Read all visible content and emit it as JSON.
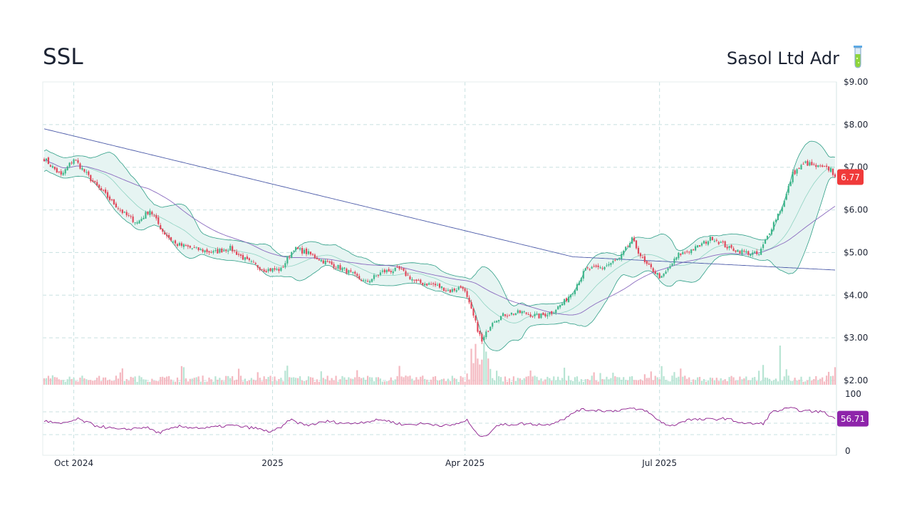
{
  "header": {
    "ticker": "SSL",
    "company": "Sasol Ltd Adr"
  },
  "icons": {
    "company_icon": "test-tube-icon"
  },
  "colors": {
    "up": "#3fb68b",
    "down": "#e0475a",
    "band_fill": "#e6f4f2",
    "band_line": "#2e9e86",
    "sma_mid": "#8fd3c2",
    "sma_50": "#8a6bbf",
    "sma_200": "#4b5aa8",
    "rsi": "#8b1a8b",
    "price_badge": "#f03a3a",
    "rsi_badge": "#8e24aa",
    "grid": "#c8e0e0"
  },
  "chart_data": {
    "type": "candlestick",
    "title": "SSL",
    "x_ticks": [
      "Oct 2024",
      "2025",
      "Apr 2025",
      "Jul 2025"
    ],
    "y_ticks": [
      "$9.00",
      "$8.00",
      "$7.00",
      "$6.00",
      "$5.00",
      "$4.00",
      "$3.00",
      "$2.00"
    ],
    "y_range": [
      2.0,
      9.0
    ],
    "last_price": "6.77",
    "rsi_ticks": [
      "100",
      "0"
    ],
    "rsi_last": "56.71",
    "rsi_range": [
      0,
      100
    ],
    "price_anchors": [
      [
        0,
        7.2
      ],
      [
        8,
        6.8
      ],
      [
        14,
        7.2
      ],
      [
        24,
        6.6
      ],
      [
        32,
        6.2
      ],
      [
        38,
        5.9
      ],
      [
        44,
        5.7
      ],
      [
        50,
        6.0
      ],
      [
        56,
        5.5
      ],
      [
        62,
        5.2
      ],
      [
        70,
        5.1
      ],
      [
        80,
        5.0
      ],
      [
        88,
        5.1
      ],
      [
        96,
        4.8
      ],
      [
        104,
        4.6
      ],
      [
        112,
        4.6
      ],
      [
        118,
        5.1
      ],
      [
        124,
        5.0
      ],
      [
        132,
        4.8
      ],
      [
        142,
        4.6
      ],
      [
        152,
        4.3
      ],
      [
        160,
        4.55
      ],
      [
        168,
        4.6
      ],
      [
        176,
        4.3
      ],
      [
        184,
        4.25
      ],
      [
        192,
        4.1
      ],
      [
        198,
        4.2
      ],
      [
        203,
        3.5
      ],
      [
        207,
        2.9
      ],
      [
        212,
        3.4
      ],
      [
        218,
        3.55
      ],
      [
        226,
        3.6
      ],
      [
        234,
        3.5
      ],
      [
        240,
        3.6
      ],
      [
        246,
        3.85
      ],
      [
        250,
        4.1
      ],
      [
        256,
        4.6
      ],
      [
        264,
        4.65
      ],
      [
        272,
        4.85
      ],
      [
        278,
        5.3
      ],
      [
        284,
        4.75
      ],
      [
        292,
        4.4
      ],
      [
        300,
        4.95
      ],
      [
        308,
        5.1
      ],
      [
        316,
        5.35
      ],
      [
        324,
        5.1
      ],
      [
        332,
        5.0
      ],
      [
        338,
        4.95
      ],
      [
        344,
        5.6
      ],
      [
        350,
        6.2
      ],
      [
        354,
        6.85
      ],
      [
        360,
        7.1
      ],
      [
        366,
        7.0
      ],
      [
        372,
        6.95
      ],
      [
        374,
        6.77
      ]
    ],
    "rsi_anchors": [
      [
        0,
        53
      ],
      [
        8,
        47
      ],
      [
        16,
        56
      ],
      [
        24,
        45
      ],
      [
        36,
        37
      ],
      [
        48,
        42
      ],
      [
        54,
        32
      ],
      [
        64,
        43
      ],
      [
        76,
        40
      ],
      [
        88,
        45
      ],
      [
        100,
        40
      ],
      [
        106,
        34
      ],
      [
        112,
        40
      ],
      [
        116,
        55
      ],
      [
        124,
        45
      ],
      [
        134,
        52
      ],
      [
        144,
        48
      ],
      [
        160,
        55
      ],
      [
        170,
        46
      ],
      [
        180,
        48
      ],
      [
        192,
        44
      ],
      [
        200,
        54
      ],
      [
        204,
        32
      ],
      [
        208,
        24
      ],
      [
        214,
        45
      ],
      [
        226,
        48
      ],
      [
        238,
        46
      ],
      [
        248,
        60
      ],
      [
        252,
        72
      ],
      [
        260,
        72
      ],
      [
        268,
        70
      ],
      [
        276,
        74
      ],
      [
        284,
        72
      ],
      [
        290,
        55
      ],
      [
        296,
        43
      ],
      [
        304,
        55
      ],
      [
        312,
        55
      ],
      [
        322,
        57
      ],
      [
        332,
        48
      ],
      [
        340,
        48
      ],
      [
        344,
        68
      ],
      [
        352,
        75
      ],
      [
        360,
        70
      ],
      [
        368,
        69
      ],
      [
        374,
        57
      ]
    ]
  }
}
